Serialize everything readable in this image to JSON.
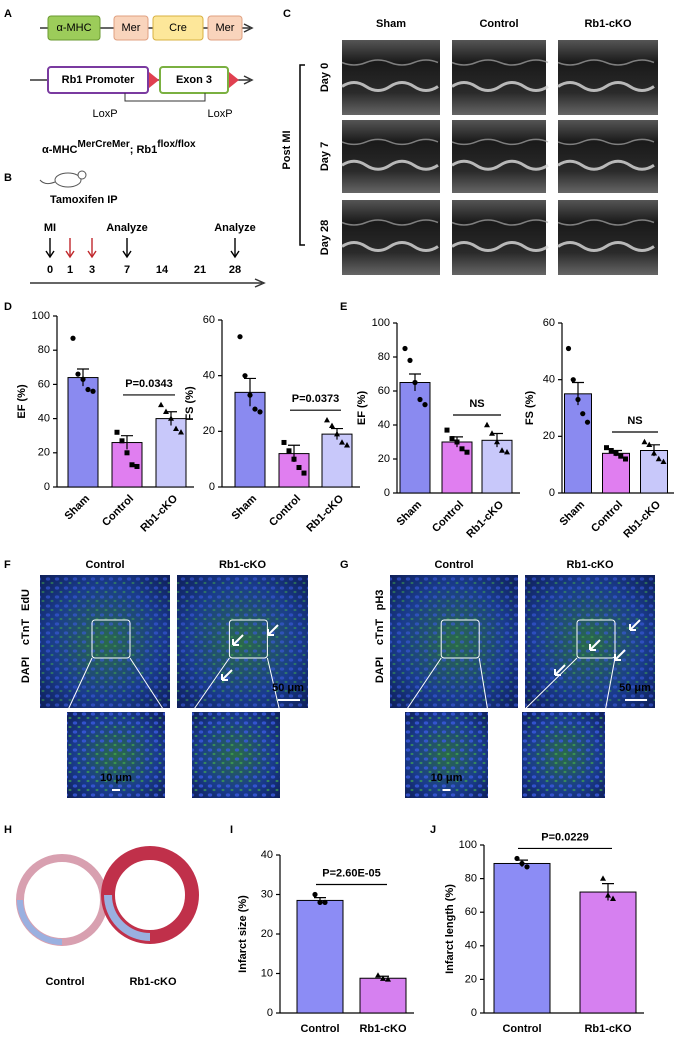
{
  "panel_letters": [
    "A",
    "B",
    "C",
    "D",
    "E",
    "F",
    "G",
    "H",
    "I",
    "J"
  ],
  "construct": {
    "top": [
      "α-MHC",
      "Mer",
      "Cre",
      "Mer"
    ],
    "bottom": [
      "Rb1 Promoter",
      "Exon 3"
    ],
    "loxp": [
      "LoxP",
      "LoxP"
    ],
    "genotype": [
      "α-MHC",
      "MerCreMer",
      "; Rb1",
      "flox/flox"
    ]
  },
  "timeline": {
    "treatment": "Tamoxifen IP",
    "events": [
      "MI",
      "Analyze",
      "Analyze"
    ],
    "days": [
      0,
      1,
      3,
      7,
      14,
      21,
      28
    ]
  },
  "echo": {
    "columns": [
      "Sham",
      "Control",
      "Rb1-cKO"
    ],
    "rows": [
      "Day 0",
      "Day 7",
      "Day 28"
    ],
    "group": "Post MI"
  },
  "staining_f": {
    "columns": [
      "Control",
      "Rb1-cKO"
    ],
    "stains": [
      "EdU",
      "cTnT",
      "DAPI"
    ],
    "scale_bars": [
      "50 μm",
      "10 μm"
    ]
  },
  "staining_g": {
    "columns": [
      "Control",
      "Rb1-cKO"
    ],
    "stains": [
      "pH3",
      "cTnT",
      "DAPI"
    ],
    "scale_bars": [
      "50 μm",
      "10 μm"
    ]
  },
  "histology": {
    "labels": [
      "Control",
      "Rb1-cKO"
    ]
  },
  "chart_data": [
    {
      "type": "bar",
      "ylabel": "EF (%)",
      "categories": [
        "Sham",
        "Control",
        "Rb1-cKO"
      ],
      "values": [
        64,
        26,
        40
      ],
      "errors": [
        5,
        4,
        4
      ],
      "points": [
        [
          87,
          66,
          63,
          57,
          56
        ],
        [
          32,
          27,
          20,
          13,
          12
        ],
        [
          48,
          44,
          40,
          34,
          32
        ]
      ],
      "colors": [
        "#8a8af0",
        "#e07ef0",
        "#c8c8fa"
      ],
      "ylim": [
        0,
        100
      ],
      "yticks": [
        0,
        20,
        40,
        60,
        80,
        100
      ],
      "annotation": "P=0.0343"
    },
    {
      "type": "bar",
      "ylabel": "FS (%)",
      "categories": [
        "Sham",
        "Control",
        "Rb1-cKO"
      ],
      "values": [
        34,
        12,
        19
      ],
      "errors": [
        5,
        3,
        2
      ],
      "points": [
        [
          54,
          40,
          33,
          28,
          27
        ],
        [
          16,
          13,
          10,
          7,
          5
        ],
        [
          24,
          22,
          19,
          16,
          15
        ]
      ],
      "colors": [
        "#8a8af0",
        "#e07ef0",
        "#c8c8fa"
      ],
      "ylim": [
        0,
        60
      ],
      "yticks": [
        0,
        20,
        40,
        60
      ],
      "annotation": "P=0.0373"
    },
    {
      "type": "bar",
      "ylabel": "EF (%)",
      "categories": [
        "Sham",
        "Control",
        "Rb1-cKO"
      ],
      "values": [
        65,
        30,
        31
      ],
      "errors": [
        5,
        3,
        4
      ],
      "points": [
        [
          85,
          78,
          65,
          55,
          52
        ],
        [
          37,
          32,
          30,
          26,
          24
        ],
        [
          40,
          35,
          30,
          25,
          24
        ]
      ],
      "colors": [
        "#8a8af0",
        "#e07ef0",
        "#c8c8fa"
      ],
      "ylim": [
        0,
        100
      ],
      "yticks": [
        0,
        20,
        40,
        60,
        80,
        100
      ],
      "annotation": "NS"
    },
    {
      "type": "bar",
      "ylabel": "FS (%)",
      "categories": [
        "Sham",
        "Control",
        "Rb1-cKO"
      ],
      "values": [
        35,
        14,
        15
      ],
      "errors": [
        4,
        1,
        2
      ],
      "points": [
        [
          51,
          40,
          33,
          28,
          25
        ],
        [
          16,
          15,
          14,
          13,
          12
        ],
        [
          18,
          17,
          14,
          12,
          11
        ]
      ],
      "colors": [
        "#8a8af0",
        "#e07ef0",
        "#c8c8fa"
      ],
      "ylim": [
        0,
        60
      ],
      "yticks": [
        0,
        20,
        40,
        60
      ],
      "annotation": "NS"
    },
    {
      "type": "bar",
      "ylabel": "Infarct size (%)",
      "categories": [
        "Control",
        "Rb1-cKO"
      ],
      "values": [
        28.5,
        8.8
      ],
      "errors": [
        0.7,
        0.5
      ],
      "points": [
        [
          30,
          28,
          28
        ],
        [
          9.5,
          8.7,
          8.5
        ]
      ],
      "colors": [
        "#8c8cf5",
        "#d680f0"
      ],
      "ylim": [
        0,
        40
      ],
      "yticks": [
        0,
        10,
        20,
        30,
        40
      ],
      "annotation": "P=2.60E-05"
    },
    {
      "type": "bar",
      "ylabel": "Infarct length (%)",
      "categories": [
        "Control",
        "Rb1-cKO"
      ],
      "values": [
        89,
        72
      ],
      "errors": [
        2,
        5
      ],
      "points": [
        [
          92,
          89,
          87
        ],
        [
          80,
          70,
          68
        ]
      ],
      "colors": [
        "#8c8cf5",
        "#d680f0"
      ],
      "ylim": [
        0,
        100
      ],
      "yticks": [
        0,
        20,
        40,
        60,
        80,
        100
      ],
      "annotation": "P=0.0229"
    }
  ]
}
